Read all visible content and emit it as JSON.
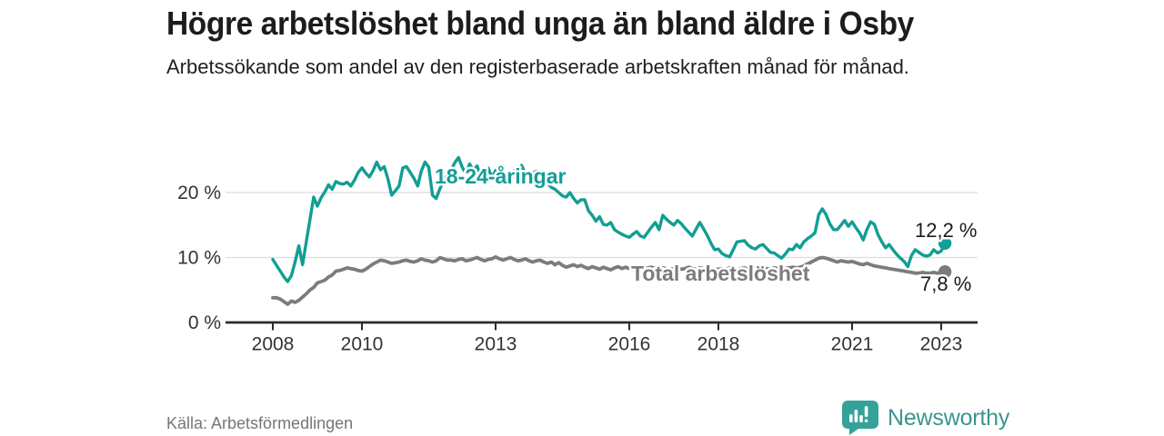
{
  "header": {
    "title": "Högre arbetslöshet bland unga än bland äldre i Osby",
    "subtitle": "Arbetssökande som andel av den registerbaserade arbetskraften månad för månad."
  },
  "chart_data": {
    "type": "line",
    "title": "Högre arbetslöshet bland unga än bland äldre i Osby",
    "x_unit": "month",
    "x_start": "2008-01",
    "x_end": "2023-02",
    "ylim": [
      0,
      26
    ],
    "grid": "horizontal",
    "legend_position": "inline-labels",
    "yticks": [
      {
        "value": 0,
        "label": "0 %"
      },
      {
        "value": 10,
        "label": "10 %"
      },
      {
        "value": 20,
        "label": "20 %"
      }
    ],
    "xticks": [
      {
        "year": 2008,
        "label": "2008"
      },
      {
        "year": 2010,
        "label": "2010"
      },
      {
        "year": 2013,
        "label": "2013"
      },
      {
        "year": 2016,
        "label": "2016"
      },
      {
        "year": 2018,
        "label": "2018"
      },
      {
        "year": 2021,
        "label": "2021"
      },
      {
        "year": 2023,
        "label": "2023"
      }
    ],
    "series": [
      {
        "name": "18-24-åringar",
        "color": "#129E94",
        "end_label": "12,2 %",
        "end_value": 12.2,
        "values": [
          9.7,
          8.8,
          7.9,
          7.0,
          6.3,
          7.2,
          9.3,
          11.8,
          8.9,
          12.4,
          15.8,
          19.3,
          17.9,
          19.2,
          20.1,
          21.2,
          20.5,
          21.7,
          21.4,
          21.3,
          21.6,
          21.0,
          21.9,
          23.1,
          23.8,
          23.0,
          22.4,
          23.4,
          24.7,
          23.5,
          24.0,
          22.1,
          19.6,
          20.3,
          21.0,
          23.8,
          24.0,
          23.1,
          22.2,
          21.0,
          23.3,
          24.7,
          23.9,
          19.6,
          19.1,
          20.6,
          21.8,
          22.6,
          23.4,
          24.6,
          25.4,
          23.9,
          22.9,
          24.4,
          23.4,
          24.1,
          22.4,
          23.1,
          23.8,
          22.3,
          23.4,
          22.6,
          23.1,
          22.3,
          21.6,
          23.4,
          22.5,
          24.2,
          22.9,
          22.4,
          23.0,
          23.3,
          22.8,
          22.0,
          21.4,
          20.8,
          20.5,
          20.0,
          19.5,
          19.3,
          20.0,
          19.1,
          18.4,
          18.9,
          18.9,
          17.2,
          16.5,
          15.6,
          16.3,
          15.1,
          15.0,
          15.4,
          14.3,
          13.9,
          13.6,
          13.3,
          13.1,
          13.6,
          14.0,
          13.3,
          13.1,
          13.9,
          14.7,
          15.4,
          14.3,
          16.5,
          15.9,
          15.4,
          15.0,
          15.7,
          15.2,
          14.5,
          13.9,
          13.3,
          14.4,
          15.4,
          14.4,
          13.4,
          12.2,
          11.2,
          11.3,
          10.6,
          10.3,
          10.1,
          11.2,
          12.4,
          12.5,
          12.6,
          11.9,
          11.5,
          11.3,
          11.8,
          12.0,
          11.4,
          10.8,
          10.7,
          10.3,
          9.9,
          10.5,
          11.3,
          11.2,
          12.0,
          11.5,
          12.4,
          12.9,
          13.3,
          13.8,
          16.6,
          17.5,
          16.6,
          15.2,
          14.3,
          14.3,
          15.0,
          15.7,
          14.8,
          15.5,
          14.6,
          13.8,
          12.7,
          14.3,
          15.5,
          15.1,
          13.5,
          12.4,
          11.5,
          12.0,
          11.2,
          10.5,
          9.9,
          9.4,
          8.6,
          10.3,
          11.2,
          10.8,
          10.4,
          10.2,
          10.4,
          11.2,
          10.7,
          11.0,
          12.2
        ]
      },
      {
        "name": "Total arbetslöshet",
        "color": "#7C7C7C",
        "end_label": "7,8 %",
        "end_value": 7.8,
        "values": [
          3.8,
          3.8,
          3.6,
          3.2,
          2.8,
          3.3,
          3.1,
          3.4,
          3.9,
          4.4,
          5.0,
          5.4,
          6.1,
          6.3,
          6.5,
          7.0,
          7.3,
          7.9,
          8.0,
          8.2,
          8.4,
          8.3,
          8.2,
          8.0,
          7.9,
          8.2,
          8.6,
          9.0,
          9.3,
          9.6,
          9.5,
          9.3,
          9.1,
          9.2,
          9.3,
          9.5,
          9.6,
          9.4,
          9.3,
          9.5,
          9.8,
          9.6,
          9.5,
          9.3,
          9.5,
          10.0,
          9.8,
          9.6,
          9.6,
          9.5,
          9.7,
          9.8,
          9.5,
          9.6,
          9.8,
          10.0,
          9.7,
          9.5,
          9.7,
          9.8,
          10.1,
          9.8,
          9.6,
          9.8,
          10.0,
          9.7,
          9.5,
          9.6,
          9.8,
          9.5,
          9.3,
          9.5,
          9.6,
          9.3,
          9.1,
          9.3,
          8.9,
          9.2,
          8.8,
          8.5,
          8.7,
          8.9,
          8.6,
          8.8,
          8.5,
          8.3,
          8.6,
          8.4,
          8.2,
          8.5,
          8.3,
          8.1,
          8.4,
          8.6,
          8.3,
          8.5,
          8.3,
          8.2,
          8.4,
          8.3,
          8.2,
          8.4,
          8.5,
          8.3,
          8.2,
          8.4,
          8.3,
          8.2,
          8.3,
          8.4,
          8.2,
          8.3,
          8.5,
          8.3,
          8.2,
          8.4,
          8.3,
          8.2,
          8.3,
          8.2,
          8.2,
          8.3,
          8.2,
          8.4,
          8.3,
          8.2,
          8.3,
          8.4,
          8.2,
          8.3,
          8.4,
          8.3,
          8.4,
          8.3,
          8.2,
          8.4,
          8.3,
          8.4,
          8.3,
          8.4,
          8.5,
          8.4,
          8.5,
          8.7,
          9.0,
          9.3,
          9.6,
          9.9,
          10.0,
          9.9,
          9.7,
          9.5,
          9.3,
          9.5,
          9.4,
          9.3,
          9.4,
          9.2,
          9.0,
          8.9,
          9.1,
          8.9,
          8.7,
          8.6,
          8.5,
          8.4,
          8.3,
          8.2,
          8.1,
          8.0,
          7.9,
          7.8,
          7.7,
          7.6,
          7.6,
          7.7,
          7.6,
          7.6,
          7.7,
          7.6,
          7.7,
          7.8
        ]
      }
    ]
  },
  "footer": {
    "source": "Källa: Arbetsförmedlingen",
    "brand": "Newsworthy"
  },
  "colors": {
    "accent_teal": "#129E94",
    "line_gray": "#7C7C7C",
    "axis": "#2b2b2b",
    "grid": "#dcdcdc",
    "text_dark": "#1c1c1c",
    "text_muted": "#767676",
    "logo_icon": "#35A29A",
    "logo_text": "#3B948D"
  }
}
